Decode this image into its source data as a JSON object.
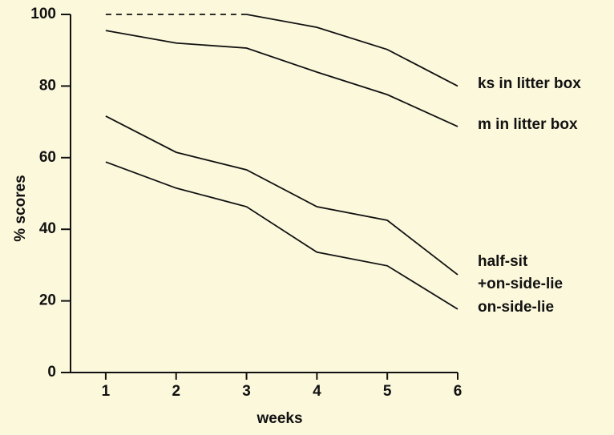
{
  "chart_data": {
    "type": "line",
    "x_label": "weeks",
    "y_label": "% scores",
    "x": [
      1,
      2,
      3,
      4,
      5,
      6
    ],
    "xlim": [
      0.5,
      6
    ],
    "xticks": [
      1,
      2,
      3,
      4,
      5,
      6
    ],
    "ylim": [
      0,
      100
    ],
    "yticks": [
      0,
      20,
      40,
      60,
      80,
      100
    ],
    "series": [
      {
        "color": "#111111",
        "style": "dashed",
        "values": [
          100,
          100,
          100,
          null,
          null,
          null
        ]
      },
      {
        "name": "ks in litter box",
        "color": "#111111",
        "values": [
          null,
          null,
          100,
          96.4,
          90.2,
          80
        ]
      },
      {
        "name": "m in litter box",
        "color": "#111111",
        "values": [
          95.5,
          92,
          90.6,
          83.9,
          77.6,
          68.7
        ]
      },
      {
        "name": "half-sit\n+on-side-lie",
        "color": "#111111",
        "values": [
          71.6,
          61.5,
          56.6,
          46.3,
          42.5,
          27.3
        ]
      },
      {
        "name": "on-side-lie",
        "color": "#111111",
        "values": [
          58.8,
          51.5,
          46.3,
          33.6,
          29.8,
          17.7
        ]
      }
    ]
  }
}
